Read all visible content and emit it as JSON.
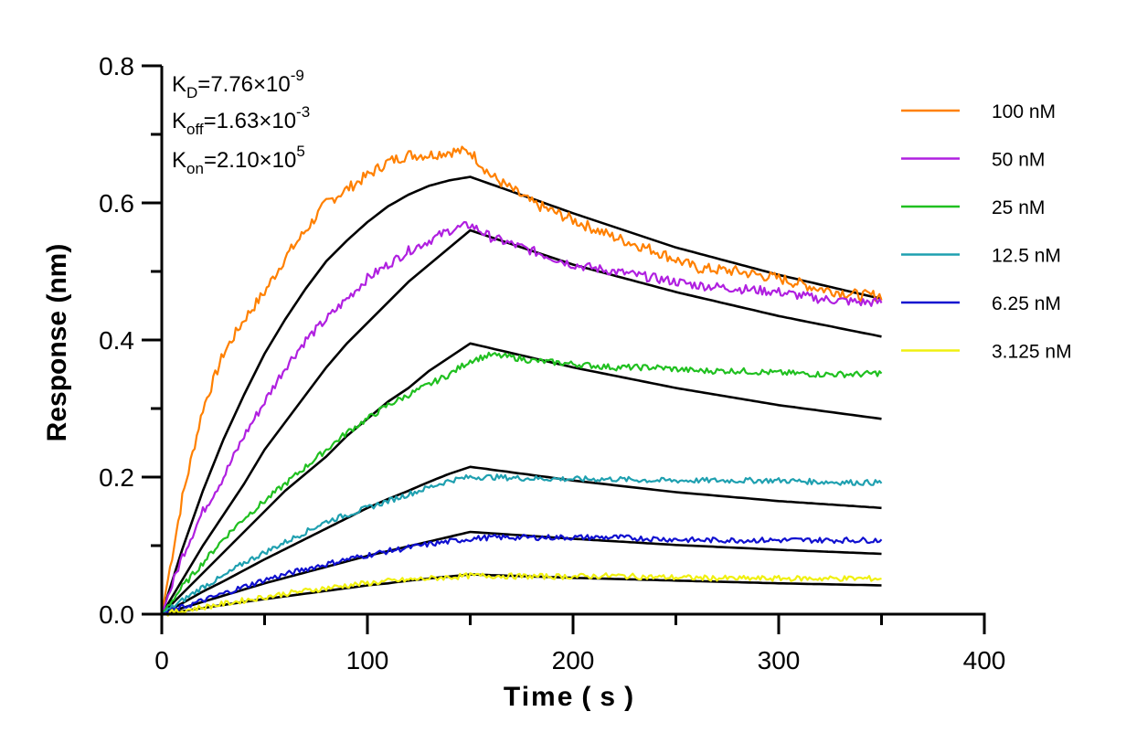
{
  "chart_data": {
    "type": "line",
    "title": "",
    "xlabel": "Time ( s )",
    "ylabel": "Response (nm)",
    "xlim": [
      0,
      400
    ],
    "ylim": [
      0,
      0.8
    ],
    "x_ticks": [
      "0",
      "100",
      "200",
      "300",
      "400"
    ],
    "y_ticks": [
      "0.0",
      "0.2",
      "0.4",
      "0.6",
      "0.8"
    ],
    "grid": false,
    "legend_position": "right",
    "association_end_s": 150,
    "end_time_s": 350,
    "annotations": {
      "kd": {
        "label": "K",
        "sub": "D",
        "value": "=7.76×10",
        "exp": "-9"
      },
      "koff": {
        "label": "K",
        "sub": "off",
        "value": "=1.63×10",
        "exp": "-3"
      },
      "kon": {
        "label": "K",
        "sub": "on",
        "value": "=2.10×10",
        "exp": "5"
      }
    },
    "series": [
      {
        "name": "100 nM",
        "color": "#ff8000",
        "points": [
          [
            0,
            0
          ],
          [
            10,
            0.17
          ],
          [
            20,
            0.3
          ],
          [
            30,
            0.38
          ],
          [
            40,
            0.43
          ],
          [
            50,
            0.47
          ],
          [
            60,
            0.52
          ],
          [
            70,
            0.56
          ],
          [
            80,
            0.6
          ],
          [
            90,
            0.62
          ],
          [
            100,
            0.64
          ],
          [
            110,
            0.66
          ],
          [
            120,
            0.67
          ],
          [
            130,
            0.67
          ],
          [
            140,
            0.675
          ],
          [
            150,
            0.675
          ],
          [
            160,
            0.64
          ],
          [
            170,
            0.62
          ],
          [
            180,
            0.6
          ],
          [
            200,
            0.575
          ],
          [
            220,
            0.55
          ],
          [
            240,
            0.53
          ],
          [
            260,
            0.505
          ],
          [
            280,
            0.5
          ],
          [
            300,
            0.49
          ],
          [
            320,
            0.475
          ],
          [
            340,
            0.465
          ],
          [
            350,
            0.465
          ]
        ],
        "fit": [
          [
            0,
            0
          ],
          [
            10,
            0.095
          ],
          [
            20,
            0.18
          ],
          [
            30,
            0.255
          ],
          [
            40,
            0.32
          ],
          [
            50,
            0.38
          ],
          [
            60,
            0.43
          ],
          [
            70,
            0.475
          ],
          [
            80,
            0.515
          ],
          [
            90,
            0.545
          ],
          [
            100,
            0.572
          ],
          [
            110,
            0.595
          ],
          [
            120,
            0.612
          ],
          [
            130,
            0.625
          ],
          [
            140,
            0.633
          ],
          [
            150,
            0.638
          ],
          [
            200,
            0.585
          ],
          [
            250,
            0.535
          ],
          [
            300,
            0.495
          ],
          [
            350,
            0.46
          ]
        ]
      },
      {
        "name": "50 nM",
        "color": "#b020e0",
        "points": [
          [
            0,
            0
          ],
          [
            10,
            0.085
          ],
          [
            20,
            0.15
          ],
          [
            30,
            0.2
          ],
          [
            40,
            0.26
          ],
          [
            50,
            0.31
          ],
          [
            60,
            0.36
          ],
          [
            70,
            0.4
          ],
          [
            80,
            0.43
          ],
          [
            90,
            0.46
          ],
          [
            100,
            0.49
          ],
          [
            110,
            0.51
          ],
          [
            120,
            0.53
          ],
          [
            130,
            0.545
          ],
          [
            140,
            0.56
          ],
          [
            150,
            0.568
          ],
          [
            160,
            0.55
          ],
          [
            180,
            0.53
          ],
          [
            200,
            0.51
          ],
          [
            220,
            0.5
          ],
          [
            240,
            0.49
          ],
          [
            260,
            0.48
          ],
          [
            280,
            0.475
          ],
          [
            300,
            0.47
          ],
          [
            320,
            0.46
          ],
          [
            340,
            0.455
          ],
          [
            350,
            0.455
          ]
        ],
        "fit": [
          [
            0,
            0
          ],
          [
            10,
            0.05
          ],
          [
            20,
            0.1
          ],
          [
            30,
            0.145
          ],
          [
            40,
            0.19
          ],
          [
            50,
            0.24
          ],
          [
            60,
            0.28
          ],
          [
            70,
            0.32
          ],
          [
            80,
            0.36
          ],
          [
            90,
            0.395
          ],
          [
            100,
            0.425
          ],
          [
            110,
            0.455
          ],
          [
            120,
            0.485
          ],
          [
            130,
            0.51
          ],
          [
            140,
            0.535
          ],
          [
            150,
            0.56
          ],
          [
            200,
            0.51
          ],
          [
            250,
            0.47
          ],
          [
            300,
            0.435
          ],
          [
            350,
            0.405
          ]
        ]
      },
      {
        "name": "25 nM",
        "color": "#20c020",
        "points": [
          [
            0,
            0
          ],
          [
            10,
            0.04
          ],
          [
            20,
            0.075
          ],
          [
            30,
            0.11
          ],
          [
            40,
            0.14
          ],
          [
            50,
            0.165
          ],
          [
            60,
            0.19
          ],
          [
            70,
            0.215
          ],
          [
            80,
            0.24
          ],
          [
            90,
            0.265
          ],
          [
            100,
            0.285
          ],
          [
            110,
            0.305
          ],
          [
            120,
            0.32
          ],
          [
            130,
            0.335
          ],
          [
            140,
            0.35
          ],
          [
            150,
            0.37
          ],
          [
            160,
            0.378
          ],
          [
            170,
            0.375
          ],
          [
            180,
            0.37
          ],
          [
            200,
            0.365
          ],
          [
            220,
            0.36
          ],
          [
            240,
            0.36
          ],
          [
            260,
            0.355
          ],
          [
            280,
            0.355
          ],
          [
            300,
            0.352
          ],
          [
            320,
            0.35
          ],
          [
            340,
            0.35
          ],
          [
            350,
            0.352
          ]
        ],
        "fit": [
          [
            0,
            0
          ],
          [
            10,
            0.03
          ],
          [
            20,
            0.06
          ],
          [
            30,
            0.09
          ],
          [
            40,
            0.12
          ],
          [
            50,
            0.15
          ],
          [
            60,
            0.18
          ],
          [
            70,
            0.205
          ],
          [
            80,
            0.23
          ],
          [
            90,
            0.26
          ],
          [
            100,
            0.285
          ],
          [
            110,
            0.31
          ],
          [
            120,
            0.33
          ],
          [
            130,
            0.355
          ],
          [
            140,
            0.375
          ],
          [
            150,
            0.395
          ],
          [
            200,
            0.36
          ],
          [
            250,
            0.33
          ],
          [
            300,
            0.305
          ],
          [
            350,
            0.285
          ]
        ]
      },
      {
        "name": "12.5 nM",
        "color": "#1fa0b0",
        "points": [
          [
            0,
            0
          ],
          [
            10,
            0.02
          ],
          [
            20,
            0.04
          ],
          [
            30,
            0.055
          ],
          [
            40,
            0.075
          ],
          [
            50,
            0.09
          ],
          [
            60,
            0.105
          ],
          [
            70,
            0.12
          ],
          [
            80,
            0.135
          ],
          [
            90,
            0.145
          ],
          [
            100,
            0.155
          ],
          [
            110,
            0.165
          ],
          [
            120,
            0.175
          ],
          [
            130,
            0.185
          ],
          [
            140,
            0.195
          ],
          [
            150,
            0.2
          ],
          [
            160,
            0.2
          ],
          [
            180,
            0.198
          ],
          [
            200,
            0.197
          ],
          [
            220,
            0.197
          ],
          [
            240,
            0.195
          ],
          [
            260,
            0.195
          ],
          [
            280,
            0.195
          ],
          [
            300,
            0.195
          ],
          [
            320,
            0.193
          ],
          [
            340,
            0.192
          ],
          [
            350,
            0.192
          ]
        ],
        "fit": [
          [
            0,
            0
          ],
          [
            10,
            0.016
          ],
          [
            20,
            0.033
          ],
          [
            30,
            0.048
          ],
          [
            40,
            0.064
          ],
          [
            50,
            0.08
          ],
          [
            60,
            0.095
          ],
          [
            70,
            0.11
          ],
          [
            80,
            0.125
          ],
          [
            90,
            0.14
          ],
          [
            100,
            0.155
          ],
          [
            110,
            0.168
          ],
          [
            120,
            0.18
          ],
          [
            130,
            0.193
          ],
          [
            140,
            0.205
          ],
          [
            150,
            0.215
          ],
          [
            200,
            0.195
          ],
          [
            250,
            0.178
          ],
          [
            300,
            0.165
          ],
          [
            350,
            0.155
          ]
        ]
      },
      {
        "name": "6.25 nM",
        "color": "#1010d0",
        "points": [
          [
            0,
            0
          ],
          [
            10,
            0.01
          ],
          [
            20,
            0.02
          ],
          [
            30,
            0.03
          ],
          [
            40,
            0.04
          ],
          [
            50,
            0.05
          ],
          [
            60,
            0.058
          ],
          [
            70,
            0.066
          ],
          [
            80,
            0.073
          ],
          [
            90,
            0.08
          ],
          [
            100,
            0.086
          ],
          [
            110,
            0.092
          ],
          [
            120,
            0.097
          ],
          [
            130,
            0.102
          ],
          [
            140,
            0.106
          ],
          [
            150,
            0.11
          ],
          [
            160,
            0.112
          ],
          [
            180,
            0.112
          ],
          [
            200,
            0.112
          ],
          [
            220,
            0.112
          ],
          [
            240,
            0.11
          ],
          [
            260,
            0.108
          ],
          [
            280,
            0.108
          ],
          [
            300,
            0.108
          ],
          [
            320,
            0.108
          ],
          [
            340,
            0.108
          ],
          [
            350,
            0.108
          ]
        ],
        "fit": [
          [
            0,
            0
          ],
          [
            10,
            0.009
          ],
          [
            20,
            0.018
          ],
          [
            30,
            0.027
          ],
          [
            40,
            0.036
          ],
          [
            50,
            0.045
          ],
          [
            60,
            0.053
          ],
          [
            70,
            0.061
          ],
          [
            80,
            0.069
          ],
          [
            90,
            0.077
          ],
          [
            100,
            0.085
          ],
          [
            110,
            0.092
          ],
          [
            120,
            0.099
          ],
          [
            130,
            0.106
          ],
          [
            140,
            0.113
          ],
          [
            150,
            0.12
          ],
          [
            200,
            0.11
          ],
          [
            250,
            0.101
          ],
          [
            300,
            0.094
          ],
          [
            350,
            0.088
          ]
        ]
      },
      {
        "name": "3.125 nM",
        "color": "#f0f010",
        "points": [
          [
            0,
            0
          ],
          [
            10,
            0.005
          ],
          [
            20,
            0.01
          ],
          [
            30,
            0.015
          ],
          [
            40,
            0.02
          ],
          [
            50,
            0.025
          ],
          [
            60,
            0.03
          ],
          [
            70,
            0.034
          ],
          [
            80,
            0.038
          ],
          [
            90,
            0.042
          ],
          [
            100,
            0.045
          ],
          [
            110,
            0.048
          ],
          [
            120,
            0.05
          ],
          [
            130,
            0.052
          ],
          [
            140,
            0.054
          ],
          [
            150,
            0.056
          ],
          [
            160,
            0.056
          ],
          [
            180,
            0.055
          ],
          [
            200,
            0.055
          ],
          [
            220,
            0.056
          ],
          [
            240,
            0.054
          ],
          [
            260,
            0.053
          ],
          [
            280,
            0.052
          ],
          [
            300,
            0.052
          ],
          [
            320,
            0.052
          ],
          [
            340,
            0.052
          ],
          [
            350,
            0.052
          ]
        ],
        "fit": [
          [
            0,
            0
          ],
          [
            10,
            0.0045
          ],
          [
            20,
            0.009
          ],
          [
            30,
            0.0135
          ],
          [
            40,
            0.018
          ],
          [
            50,
            0.022
          ],
          [
            60,
            0.026
          ],
          [
            70,
            0.03
          ],
          [
            80,
            0.034
          ],
          [
            90,
            0.038
          ],
          [
            100,
            0.042
          ],
          [
            110,
            0.045
          ],
          [
            120,
            0.049
          ],
          [
            130,
            0.052
          ],
          [
            140,
            0.055
          ],
          [
            150,
            0.058
          ],
          [
            200,
            0.053
          ],
          [
            250,
            0.049
          ],
          [
            300,
            0.045
          ],
          [
            350,
            0.042
          ]
        ]
      }
    ]
  }
}
